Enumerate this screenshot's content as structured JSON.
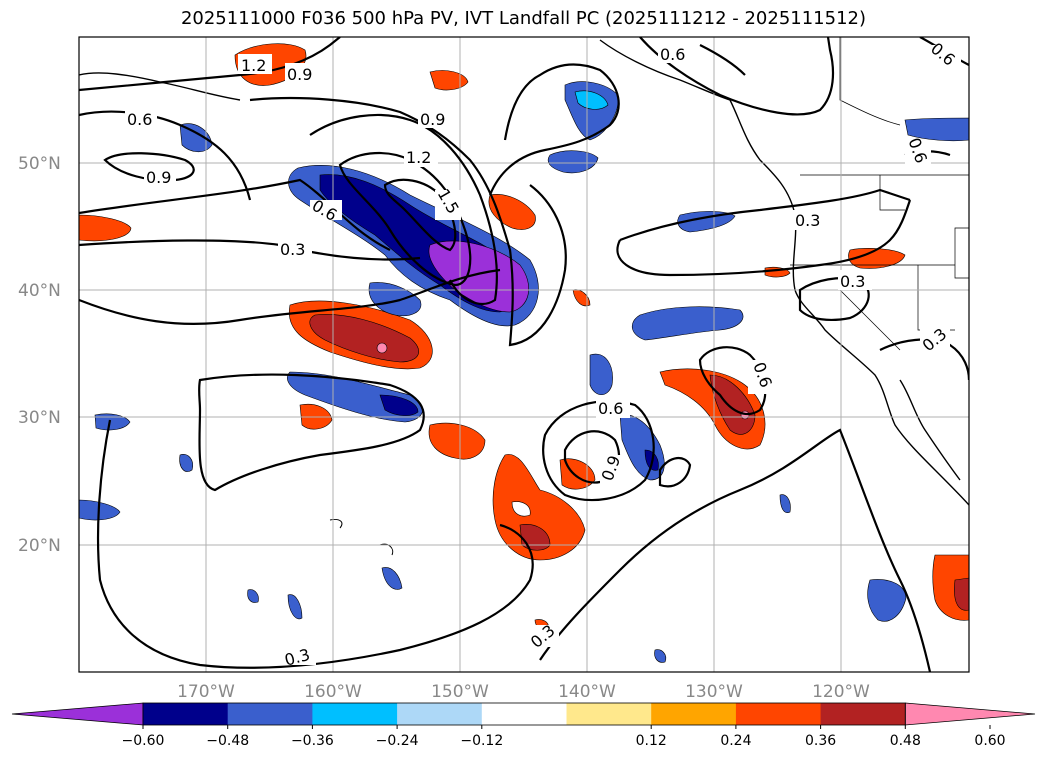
{
  "title": "2025111000 F036 500 hPa PV, IVT Landfall PC (2025111212 - 2025111512)",
  "latitude_labels": [
    "50°N",
    "40°N",
    "30°N",
    "20°N"
  ],
  "longitude_labels": [
    "170°W",
    "160°W",
    "150°W",
    "140°W",
    "130°W",
    "120°W"
  ],
  "contour_labels": [
    "1.2",
    "0.9",
    "0.6",
    "0.6",
    "0.9",
    "0.6",
    "0.9",
    "1.2",
    "1.5",
    "0.6",
    "0.3",
    "0.3",
    "0.3",
    "0.6",
    "0.6",
    "0.9",
    "0.3",
    "0.3",
    "0.6",
    "0.3"
  ],
  "colorbar": {
    "ticks": [
      "−0.60",
      "−0.48",
      "−0.36",
      "−0.24",
      "−0.12",
      "0.12",
      "0.24",
      "0.36",
      "0.48",
      "0.60"
    ],
    "colors": [
      "#9b30d9",
      "#00008b",
      "#3a5fcd",
      "#00bfff",
      "#add8f7",
      "#ffffff",
      "#ffe88c",
      "#ffa500",
      "#ff4500",
      "#b22222",
      "#ff88b0"
    ]
  },
  "colors": {
    "land_outline": "#000000",
    "grid": "#b0b0b0",
    "contour": "#000000"
  }
}
